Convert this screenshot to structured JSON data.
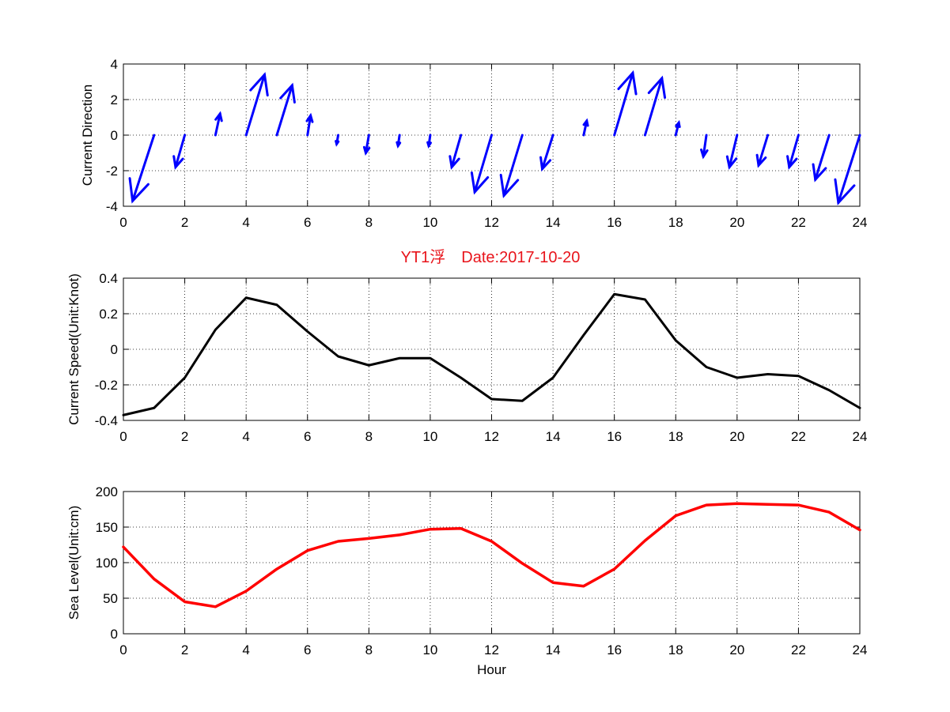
{
  "title": "YT1浮　Date:2017-10-20",
  "colors": {
    "title": "#e8141b",
    "arrows": "#0000ff",
    "speed_line": "#000000",
    "sea_level_line": "#ff0000"
  },
  "chart_data": [
    {
      "type": "quiver",
      "ylabel": "Current Direction",
      "xlim": [
        0,
        24
      ],
      "ylim": [
        -4,
        4
      ],
      "xticks": [
        "0",
        "2",
        "4",
        "6",
        "8",
        "10",
        "12",
        "14",
        "16",
        "18",
        "20",
        "22",
        "24"
      ],
      "yticks": [
        "-4",
        "-2",
        "0",
        "2",
        "4"
      ],
      "grid": true,
      "arrows": [
        {
          "x": 1,
          "u": -0.7,
          "v": -3.7
        },
        {
          "x": 2,
          "u": -0.3,
          "v": -1.8
        },
        {
          "x": 3,
          "u": 0.15,
          "v": 1.2
        },
        {
          "x": 4,
          "u": 0.6,
          "v": 3.4
        },
        {
          "x": 5,
          "u": 0.5,
          "v": 2.8
        },
        {
          "x": 6,
          "u": 0.1,
          "v": 1.1
        },
        {
          "x": 7,
          "u": -0.05,
          "v": -0.5
        },
        {
          "x": 8,
          "u": -0.1,
          "v": -1.0
        },
        {
          "x": 9,
          "u": -0.05,
          "v": -0.6
        },
        {
          "x": 10,
          "u": -0.05,
          "v": -0.6
        },
        {
          "x": 11,
          "u": -0.3,
          "v": -1.8
        },
        {
          "x": 12,
          "u": -0.55,
          "v": -3.2
        },
        {
          "x": 13,
          "u": -0.6,
          "v": -3.4
        },
        {
          "x": 14,
          "u": -0.35,
          "v": -1.9
        },
        {
          "x": 15,
          "u": 0.1,
          "v": 0.8
        },
        {
          "x": 16,
          "u": 0.6,
          "v": 3.5
        },
        {
          "x": 17,
          "u": 0.55,
          "v": 3.2
        },
        {
          "x": 18,
          "u": 0.1,
          "v": 0.7
        },
        {
          "x": 19,
          "u": -0.1,
          "v": -1.2
        },
        {
          "x": 20,
          "u": -0.25,
          "v": -1.8
        },
        {
          "x": 21,
          "u": -0.3,
          "v": -1.7
        },
        {
          "x": 22,
          "u": -0.3,
          "v": -1.8
        },
        {
          "x": 23,
          "u": -0.45,
          "v": -2.5
        },
        {
          "x": 24,
          "u": -0.7,
          "v": -3.8
        }
      ]
    },
    {
      "type": "line",
      "ylabel": "Current Speed(Unit:Knot)",
      "xlim": [
        0,
        24
      ],
      "ylim": [
        -0.4,
        0.4
      ],
      "xticks": [
        "0",
        "2",
        "4",
        "6",
        "8",
        "10",
        "12",
        "14",
        "16",
        "18",
        "20",
        "22",
        "24"
      ],
      "yticks": [
        "-0.4",
        "-0.2",
        "0",
        "0.2",
        "0.4"
      ],
      "grid": true,
      "x": [
        0,
        1,
        2,
        3,
        4,
        5,
        6,
        7,
        8,
        9,
        10,
        11,
        12,
        13,
        14,
        15,
        16,
        17,
        18,
        19,
        20,
        21,
        22,
        23,
        24
      ],
      "y": [
        -0.37,
        -0.33,
        -0.16,
        0.11,
        0.29,
        0.25,
        0.1,
        -0.04,
        -0.09,
        -0.05,
        -0.05,
        -0.16,
        -0.28,
        -0.29,
        -0.16,
        0.08,
        0.31,
        0.28,
        0.05,
        -0.1,
        -0.16,
        -0.14,
        -0.15,
        -0.23,
        -0.33
      ]
    },
    {
      "type": "line",
      "ylabel": "Sea Level(Unit:cm)",
      "xlabel": "Hour",
      "xlim": [
        0,
        24
      ],
      "ylim": [
        0,
        200
      ],
      "xticks": [
        "0",
        "2",
        "4",
        "6",
        "8",
        "10",
        "12",
        "14",
        "16",
        "18",
        "20",
        "22",
        "24"
      ],
      "yticks": [
        "0",
        "50",
        "100",
        "150",
        "200"
      ],
      "grid": true,
      "x": [
        0,
        1,
        2,
        3,
        4,
        5,
        6,
        7,
        8,
        9,
        10,
        11,
        12,
        13,
        14,
        15,
        16,
        17,
        18,
        19,
        20,
        21,
        22,
        23,
        24
      ],
      "y": [
        122,
        77,
        45,
        38,
        60,
        91,
        117,
        130,
        134,
        139,
        147,
        148,
        130,
        99,
        72,
        67,
        91,
        131,
        166,
        181,
        183,
        182,
        181,
        171,
        146
      ]
    }
  ]
}
